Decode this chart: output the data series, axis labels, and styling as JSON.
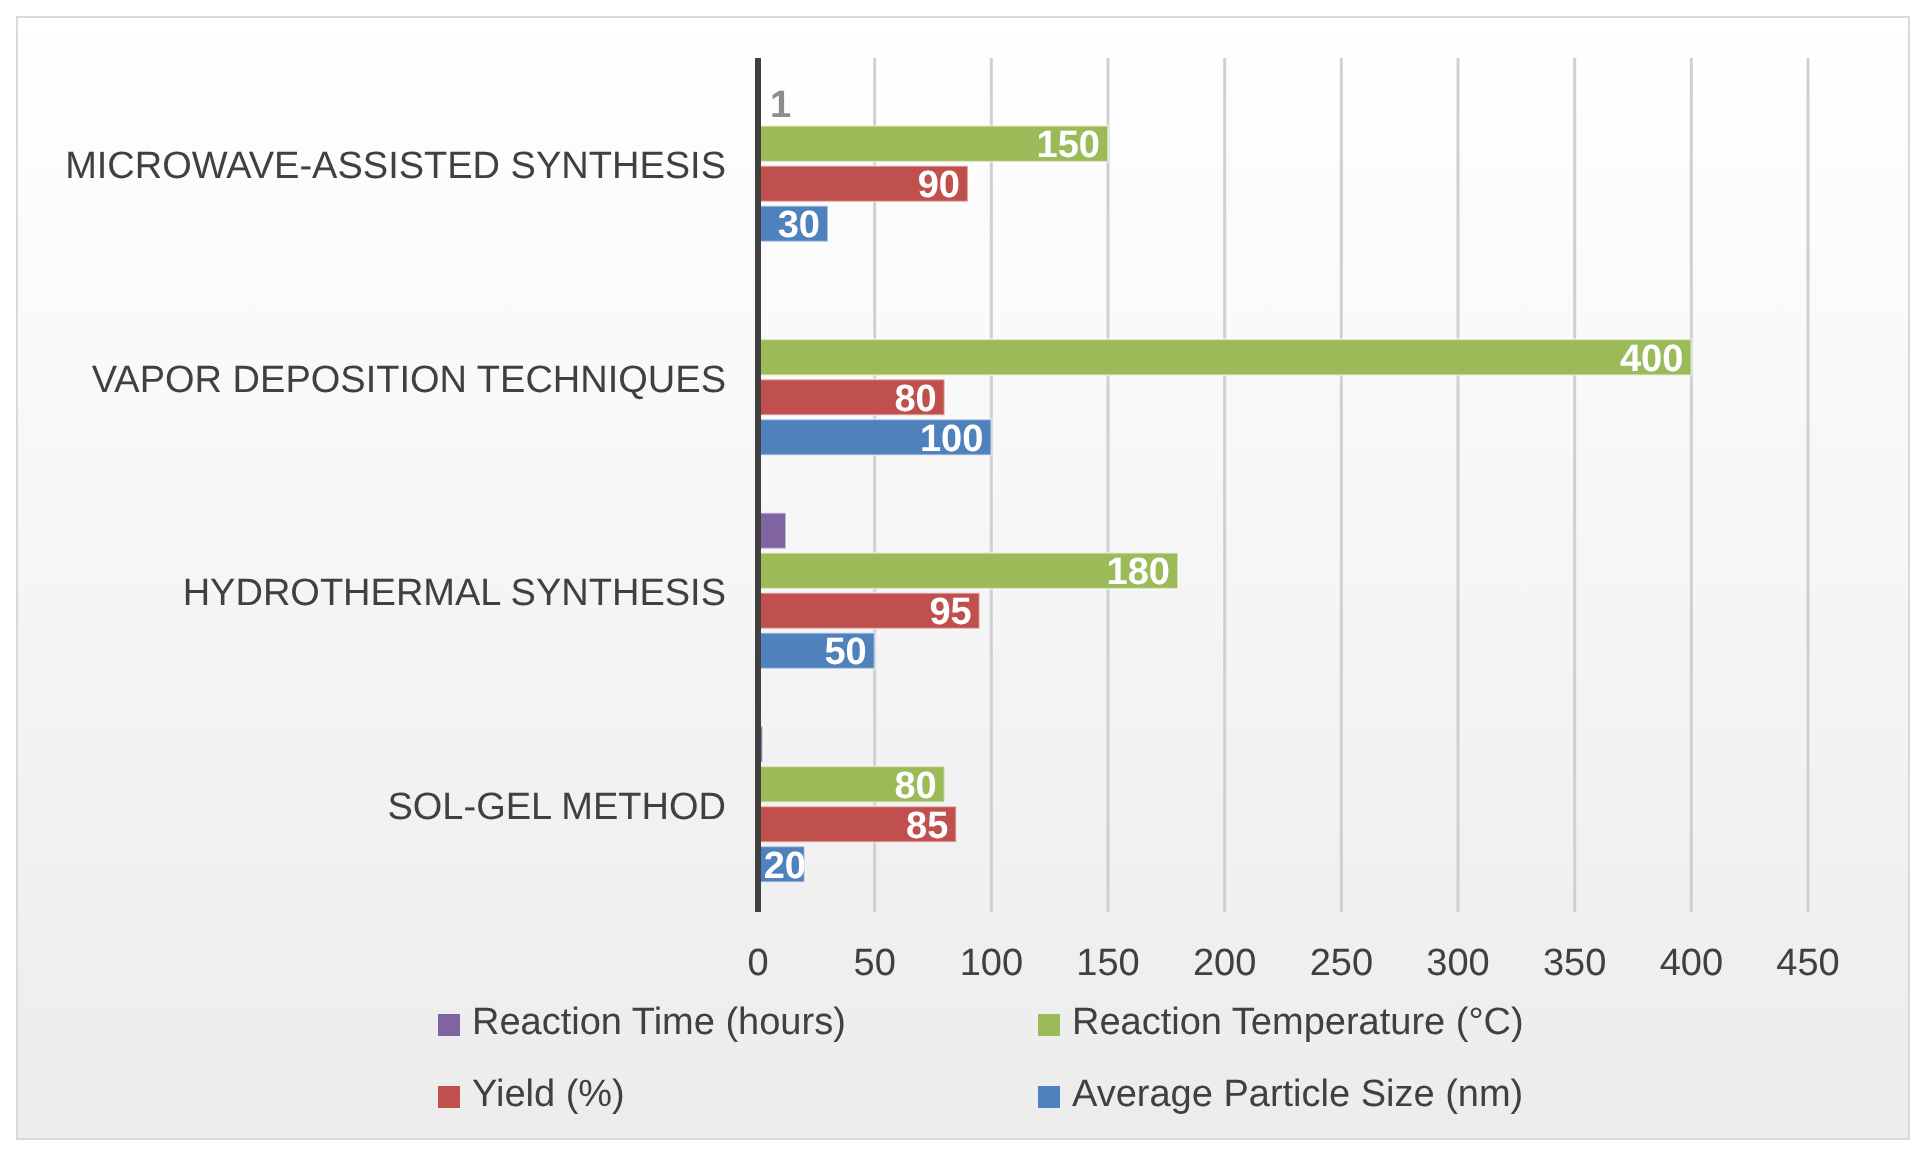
{
  "chart_data": {
    "type": "bar",
    "orientation": "horizontal",
    "categories": [
      "MICROWAVE-ASSISTED SYNTHESIS",
      "VAPOR DEPOSITION TECHNIQUES",
      "HYDROTHERMAL SYNTHESIS",
      "SOL-GEL METHOD"
    ],
    "series": [
      {
        "name": "Reaction Time (hours)",
        "color": "#8064a2",
        "values": [
          1,
          null,
          12,
          2
        ],
        "value_labels": [
          "1",
          null,
          null,
          null
        ]
      },
      {
        "name": "Reaction Temperature (°C)",
        "color": "#9bbb59",
        "values": [
          150,
          400,
          180,
          80
        ],
        "value_labels": [
          "150",
          "400",
          "180",
          "80"
        ]
      },
      {
        "name": "Yield (%)",
        "color": "#c0504d",
        "values": [
          90,
          80,
          95,
          85
        ],
        "value_labels": [
          "90",
          "80",
          "95",
          "85"
        ]
      },
      {
        "name": "Average Particle Size (nm)",
        "color": "#4f81bd",
        "values": [
          30,
          100,
          50,
          20
        ],
        "value_labels": [
          "30",
          "100",
          "50",
          "20"
        ]
      }
    ],
    "xlim": [
      0,
      450
    ],
    "xticks": [
      0,
      50,
      100,
      150,
      200,
      250,
      300,
      350,
      400,
      450
    ],
    "grid": "x",
    "legend": "bottom"
  }
}
